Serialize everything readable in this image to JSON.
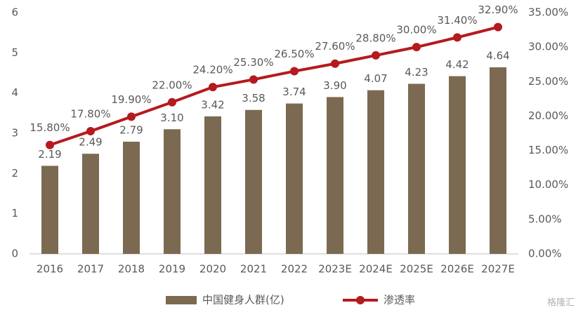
{
  "chart_data": {
    "type": "bar",
    "categories": [
      "2016",
      "2017",
      "2018",
      "2019",
      "2020",
      "2021",
      "2022",
      "2023E",
      "2024E",
      "2025E",
      "2026E",
      "2027E"
    ],
    "series": [
      {
        "name": "中国健身人群(亿)",
        "color": "#7b6a51",
        "type": "bar",
        "values": [
          2.19,
          2.49,
          2.79,
          3.1,
          3.42,
          3.58,
          3.74,
          3.9,
          4.07,
          4.23,
          4.42,
          4.64
        ],
        "value_labels": [
          "2.19",
          "2.49",
          "2.79",
          "3.10",
          "3.42",
          "3.58",
          "3.74",
          "3.90",
          "4.07",
          "4.23",
          "4.42",
          "4.64"
        ]
      },
      {
        "name": "渗透率",
        "color": "#b51a1e",
        "type": "line",
        "axis": "y2",
        "values": [
          15.8,
          17.8,
          19.9,
          22.0,
          24.2,
          25.3,
          26.5,
          27.6,
          28.8,
          30.0,
          31.4,
          32.9
        ],
        "value_labels": [
          "15.80%",
          "17.80%",
          "19.90%",
          "22.00%",
          "24.20%",
          "25.30%",
          "26.50%",
          "27.60%",
          "28.80%",
          "30.00%",
          "31.40%",
          "32.90%"
        ]
      }
    ],
    "ylim": [
      0,
      6
    ],
    "yticks": [
      0,
      1,
      2,
      3,
      4,
      5,
      6
    ],
    "y2lim": [
      0,
      35
    ],
    "y2ticks": [
      {
        "value": 0,
        "label": "0.00%"
      },
      {
        "value": 5,
        "label": "5.00%"
      },
      {
        "value": 10,
        "label": "10.00%"
      },
      {
        "value": 15,
        "label": "15.00%"
      },
      {
        "value": 20,
        "label": "20.00%"
      },
      {
        "value": 25,
        "label": "25.00%"
      },
      {
        "value": 30,
        "label": "30.00%"
      },
      {
        "value": 35,
        "label": "35.00%"
      }
    ],
    "watermark": "格隆汇"
  }
}
